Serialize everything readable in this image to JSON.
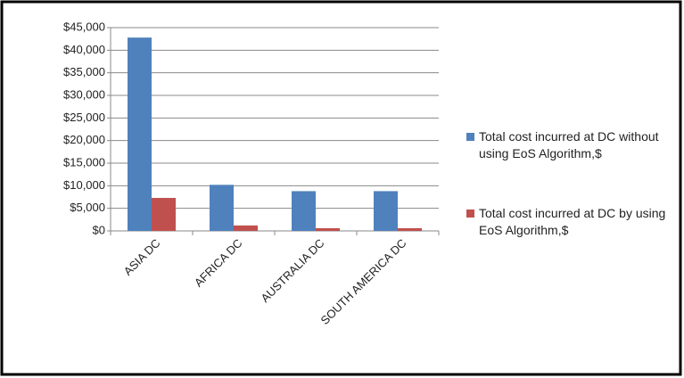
{
  "chart_data": {
    "type": "bar",
    "categories": [
      "ASIA DC",
      "AFRICA DC",
      "AUSTRALIA DC",
      "SOUTH AMERICA DC"
    ],
    "series": [
      {
        "name": "Total cost incurred at DC without using EoS Algorithm,$",
        "color": "#4f81bd",
        "values": [
          42800,
          10200,
          8800,
          8800
        ]
      },
      {
        "name": "Total cost incurred at DC by using EoS Algorithm,$",
        "color": "#c0504d",
        "values": [
          7300,
          1200,
          600,
          600
        ]
      }
    ],
    "ylim": [
      0,
      45000
    ],
    "yticks": [
      {
        "value": 0,
        "label": "$0"
      },
      {
        "value": 5000,
        "label": "$5,000"
      },
      {
        "value": 10000,
        "label": "$10,000"
      },
      {
        "value": 15000,
        "label": "$15,000"
      },
      {
        "value": 20000,
        "label": "$20,000"
      },
      {
        "value": 25000,
        "label": "$25,000"
      },
      {
        "value": 30000,
        "label": "$30,000"
      },
      {
        "value": 35000,
        "label": "$35,000"
      },
      {
        "value": 40000,
        "label": "$40,000"
      },
      {
        "value": 45000,
        "label": "$45,000"
      }
    ],
    "grid": true
  }
}
